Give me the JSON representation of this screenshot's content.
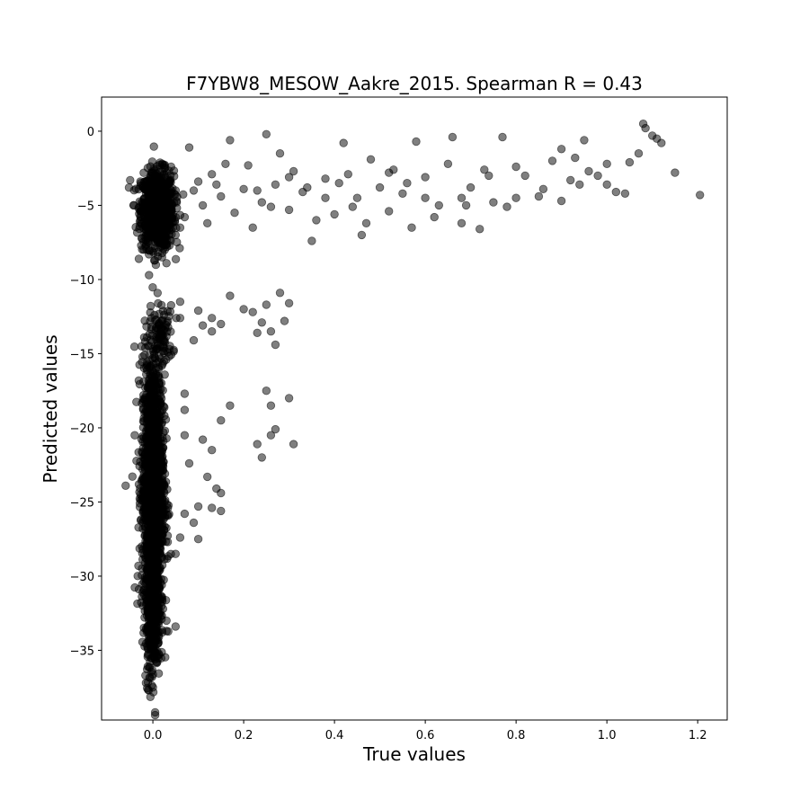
{
  "chart_data": {
    "type": "scatter",
    "title": "F7YBW8_MESOW_Aakre_2015. Spearman R = 0.43",
    "xlabel": "True values",
    "ylabel": "Predicted values",
    "xlim": [
      -0.113,
      1.265
    ],
    "ylim": [
      -39.7,
      2.3
    ],
    "xticks": [
      0.0,
      0.2,
      0.4,
      0.6,
      0.8,
      1.0,
      1.2
    ],
    "xtick_labels": [
      "0.0",
      "0.2",
      "0.4",
      "0.6",
      "0.8",
      "1.0",
      "1.2"
    ],
    "yticks": [
      0,
      -5,
      -10,
      -15,
      -20,
      -25,
      -30,
      -35
    ],
    "ytick_labels": [
      "0",
      "−5",
      "−10",
      "−15",
      "−20",
      "−25",
      "−30",
      "−35"
    ],
    "grid": false,
    "marker_color": "#000000",
    "marker_alpha": 0.5,
    "series": [
      {
        "clusters": [
          {
            "x_center": 0.01,
            "x_spread": 0.018,
            "y_center": -5.3,
            "y_spread": 1.3,
            "n": 900
          },
          {
            "x_center": 0.02,
            "x_spread": 0.012,
            "y_center": -13.8,
            "y_spread": 1.0,
            "n": 80
          },
          {
            "x_center": 0.0,
            "x_spread": 0.012,
            "y_center": -24.0,
            "y_spread": 4.5,
            "n": 1500
          },
          {
            "x_center": 0.0,
            "x_spread": 0.008,
            "y_center": -32.5,
            "y_spread": 2.2,
            "n": 300
          }
        ],
        "points": [
          [
            1.205,
            -4.3
          ],
          [
            1.15,
            -2.8
          ],
          [
            1.12,
            -0.8
          ],
          [
            1.08,
            0.5
          ],
          [
            1.085,
            0.2
          ],
          [
            1.1,
            -0.3
          ],
          [
            1.11,
            -0.5
          ],
          [
            1.07,
            -1.5
          ],
          [
            1.05,
            -2.1
          ],
          [
            1.02,
            -4.1
          ],
          [
            1.0,
            -3.6
          ],
          [
            0.98,
            -3.0
          ],
          [
            0.96,
            -2.7
          ],
          [
            0.95,
            -0.6
          ],
          [
            0.93,
            -1.8
          ],
          [
            0.92,
            -3.3
          ],
          [
            0.9,
            -1.2
          ],
          [
            0.88,
            -2.0
          ],
          [
            0.86,
            -3.9
          ],
          [
            0.85,
            -4.4
          ],
          [
            0.82,
            -3.0
          ],
          [
            0.8,
            -4.5
          ],
          [
            0.78,
            -5.1
          ],
          [
            0.77,
            -0.4
          ],
          [
            0.75,
            -4.8
          ],
          [
            0.73,
            -2.6
          ],
          [
            0.72,
            -6.6
          ],
          [
            0.7,
            -3.8
          ],
          [
            0.68,
            -4.5
          ],
          [
            0.66,
            -0.4
          ],
          [
            0.65,
            -2.2
          ],
          [
            0.63,
            -5.0
          ],
          [
            0.6,
            -3.1
          ],
          [
            0.58,
            -0.7
          ],
          [
            0.57,
            -6.5
          ],
          [
            0.55,
            -4.2
          ],
          [
            0.53,
            -2.6
          ],
          [
            0.52,
            -5.4
          ],
          [
            0.5,
            -3.8
          ],
          [
            0.48,
            -1.9
          ],
          [
            0.46,
            -7.0
          ],
          [
            0.45,
            -4.5
          ],
          [
            0.43,
            -2.9
          ],
          [
            0.42,
            -0.8
          ],
          [
            0.4,
            -5.6
          ],
          [
            0.38,
            -3.2
          ],
          [
            0.36,
            -6.0
          ],
          [
            0.35,
            -7.4
          ],
          [
            0.33,
            -4.1
          ],
          [
            0.31,
            -2.7
          ],
          [
            0.3,
            -5.3
          ],
          [
            0.28,
            -1.5
          ],
          [
            0.27,
            -3.6
          ],
          [
            0.25,
            -0.2
          ],
          [
            0.24,
            -4.8
          ],
          [
            0.22,
            -6.5
          ],
          [
            0.21,
            -2.3
          ],
          [
            0.2,
            -3.9
          ],
          [
            0.18,
            -5.5
          ],
          [
            0.17,
            -0.6
          ],
          [
            0.15,
            -4.4
          ],
          [
            0.13,
            -2.9
          ],
          [
            0.12,
            -6.2
          ],
          [
            0.1,
            -3.4
          ],
          [
            0.08,
            -1.1
          ],
          [
            0.07,
            -5.8
          ],
          [
            0.05,
            -7.0
          ],
          [
            0.04,
            -2.4
          ],
          [
            0.03,
            -8.9
          ],
          [
            0.02,
            -8.5
          ],
          [
            -0.05,
            -3.3
          ],
          [
            0.68,
            -6.2
          ],
          [
            0.62,
            -5.8
          ],
          [
            0.56,
            -3.5
          ],
          [
            0.47,
            -6.2
          ],
          [
            0.41,
            -3.5
          ],
          [
            0.34,
            -3.8
          ],
          [
            0.26,
            -5.1
          ],
          [
            0.16,
            -2.2
          ],
          [
            0.09,
            -4.0
          ],
          [
            0.9,
            -4.7
          ],
          [
            1.0,
            -2.2
          ],
          [
            1.04,
            -4.2
          ],
          [
            0.94,
            -3.6
          ],
          [
            0.8,
            -2.4
          ],
          [
            0.74,
            -3.0
          ],
          [
            0.69,
            -5.0
          ],
          [
            0.6,
            -4.5
          ],
          [
            0.52,
            -2.8
          ],
          [
            0.44,
            -5.1
          ],
          [
            0.38,
            -4.5
          ],
          [
            0.3,
            -3.1
          ],
          [
            0.23,
            -4.0
          ],
          [
            0.14,
            -3.6
          ],
          [
            0.11,
            -5.0
          ],
          [
            0.06,
            -6.5
          ],
          [
            0.28,
            -10.9
          ],
          [
            0.3,
            -11.6
          ],
          [
            0.29,
            -12.8
          ],
          [
            0.25,
            -11.7
          ],
          [
            0.24,
            -12.9
          ],
          [
            0.22,
            -12.2
          ],
          [
            0.2,
            -12.0
          ],
          [
            0.17,
            -11.1
          ],
          [
            0.27,
            -14.4
          ],
          [
            0.26,
            -13.5
          ],
          [
            0.23,
            -13.6
          ],
          [
            0.15,
            -13.0
          ],
          [
            0.13,
            -12.6
          ],
          [
            0.13,
            -13.5
          ],
          [
            0.11,
            -13.1
          ],
          [
            0.1,
            -12.1
          ],
          [
            0.09,
            -14.1
          ],
          [
            0.06,
            -11.5
          ],
          [
            0.06,
            -12.6
          ],
          [
            0.25,
            -17.5
          ],
          [
            0.3,
            -18.0
          ],
          [
            0.26,
            -18.5
          ],
          [
            0.27,
            -20.1
          ],
          [
            0.26,
            -20.5
          ],
          [
            0.23,
            -21.1
          ],
          [
            0.24,
            -22.0
          ],
          [
            0.31,
            -21.1
          ],
          [
            0.17,
            -18.5
          ],
          [
            0.15,
            -19.5
          ],
          [
            0.13,
            -21.5
          ],
          [
            0.12,
            -23.3
          ],
          [
            0.13,
            -25.4
          ],
          [
            0.15,
            -25.6
          ],
          [
            0.14,
            -24.1
          ],
          [
            0.15,
            -24.4
          ],
          [
            0.1,
            -27.5
          ],
          [
            0.1,
            -25.3
          ],
          [
            0.09,
            -26.4
          ],
          [
            0.07,
            -25.8
          ],
          [
            0.06,
            -27.4
          ],
          [
            0.05,
            -28.5
          ],
          [
            0.08,
            -22.4
          ],
          [
            0.07,
            -20.5
          ],
          [
            0.11,
            -20.8
          ],
          [
            0.07,
            -18.8
          ],
          [
            0.07,
            -17.7
          ],
          [
            -0.06,
            -23.9
          ],
          [
            -0.04,
            -20.5
          ],
          [
            0.05,
            -33.4
          ],
          [
            0.03,
            -33.7
          ],
          [
            0.03,
            -33.0
          ],
          [
            0.0,
            -37.5
          ]
        ]
      }
    ]
  }
}
